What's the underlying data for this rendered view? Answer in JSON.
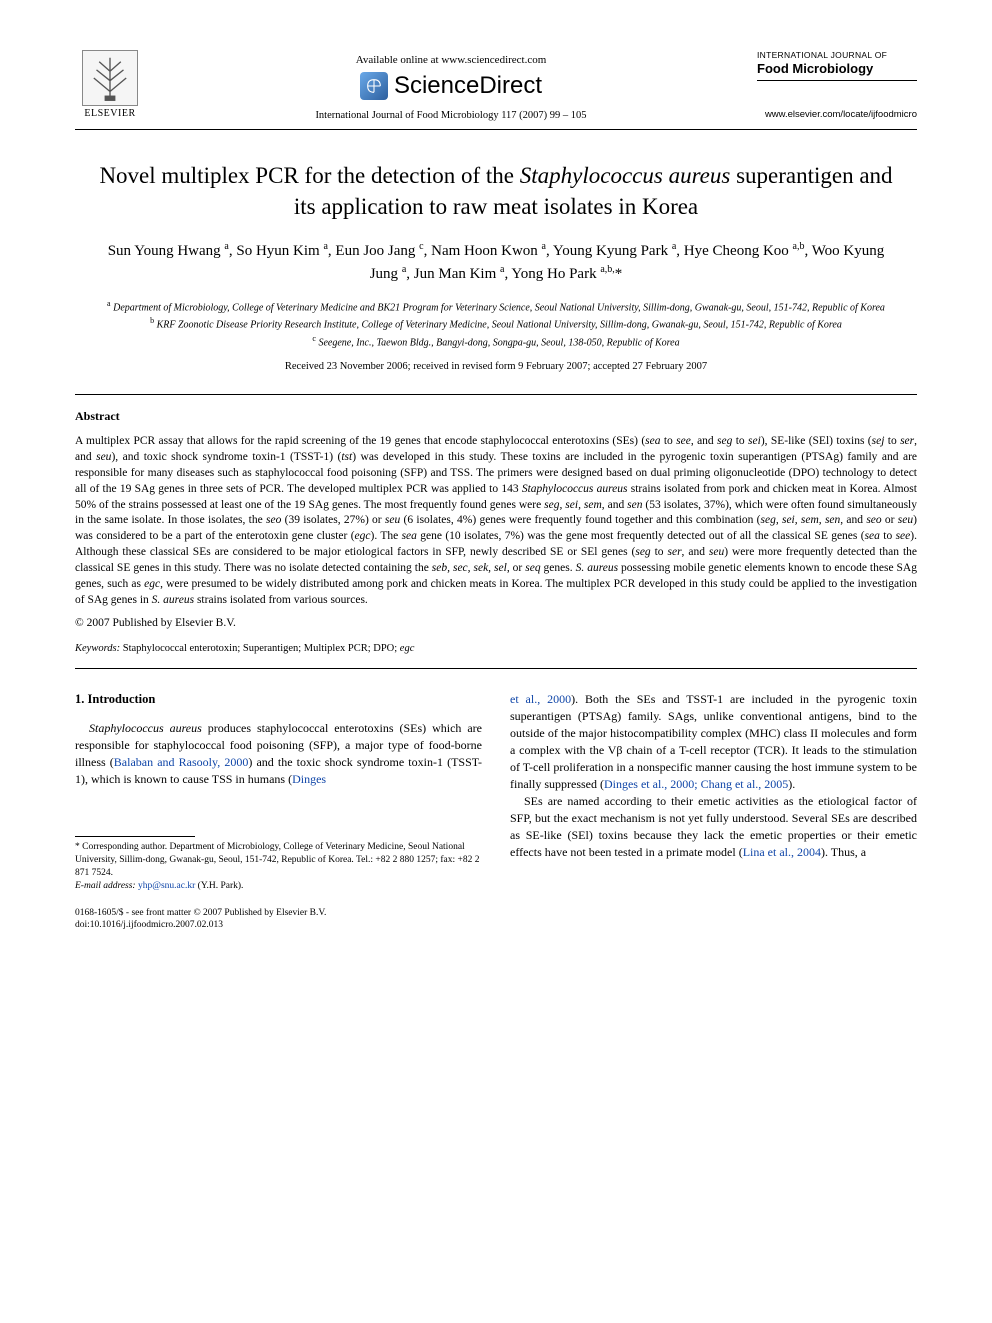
{
  "header": {
    "available_online": "Available online at www.sciencedirect.com",
    "scidirect": "ScienceDirect",
    "elsevier": "ELSEVIER",
    "citation": "International Journal of Food Microbiology 117 (2007) 99 – 105",
    "journal_over": "INTERNATIONAL JOURNAL OF",
    "journal_name": "Food Microbiology",
    "journal_url": "www.elsevier.com/locate/ijfoodmicro"
  },
  "title": {
    "pre": "Novel multiplex PCR for the detection of the ",
    "italic": "Staphylococcus aureus",
    "post": " superantigen and its application to raw meat isolates in Korea"
  },
  "authors_html": "Sun Young Hwang <sup>a</sup>, So Hyun Kim <sup>a</sup>, Eun Joo Jang <sup>c</sup>, Nam Hoon Kwon <sup>a</sup>, Young Kyung Park <sup>a</sup>, Hye Cheong Koo <sup>a,b</sup>, Woo Kyung Jung <sup>a</sup>, Jun Man Kim <sup>a</sup>, Yong Ho Park <sup>a,b,</sup>*",
  "affiliations": {
    "a": "Department of Microbiology, College of Veterinary Medicine and BK21 Program for Veterinary Science, Seoul National University, Sillim-dong, Gwanak-gu, Seoul, 151-742, Republic of Korea",
    "b": "KRF Zoonotic Disease Priority Research Institute, College of Veterinary Medicine, Seoul National University, Sillim-dong, Gwanak-gu, Seoul, 151-742, Republic of Korea",
    "c": "Seegene, Inc., Taewon Bldg., Bangyi-dong, Songpa-gu, Seoul, 138-050, Republic of Korea"
  },
  "dates": "Received 23 November 2006; received in revised form 9 February 2007; accepted 27 February 2007",
  "abstract": {
    "heading": "Abstract",
    "body_html": "A multiplex PCR assay that allows for the rapid screening of the 19 genes that encode staphylococcal enterotoxins (SEs) (<span class=\"italic\">sea</span> to <span class=\"italic\">see</span>, and <span class=\"italic\">seg</span> to <span class=\"italic\">sei</span>), SE-like (SEl) toxins (<span class=\"italic\">sej</span> to <span class=\"italic\">ser</span>, and <span class=\"italic\">seu</span>), and toxic shock syndrome toxin-1 (TSST-1) (<span class=\"italic\">tst</span>) was developed in this study. These toxins are included in the pyrogenic toxin superantigen (PTSAg) family and are responsible for many diseases such as staphylococcal food poisoning (SFP) and TSS. The primers were designed based on dual priming oligonucleotide (DPO) technology to detect all of the 19 SAg genes in three sets of PCR. The developed multiplex PCR was applied to 143 <span class=\"italic\">Staphylococcus aureus</span> strains isolated from pork and chicken meat in Korea. Almost 50% of the strains possessed at least one of the 19 SAg genes. The most frequently found genes were <span class=\"italic\">seg, sei, sem</span>, and <span class=\"italic\">sen</span> (53 isolates, 37%), which were often found simultaneously in the same isolate. In those isolates, the <span class=\"italic\">seo</span> (39 isolates, 27%) or <span class=\"italic\">seu</span> (6 isolates, 4%) genes were frequently found together and this combination (<span class=\"italic\">seg, sei, sem, sen</span>, and <span class=\"italic\">seo</span> or <span class=\"italic\">seu</span>) was considered to be a part of the enterotoxin gene cluster (<span class=\"italic\">egc</span>). The <span class=\"italic\">sea</span> gene (10 isolates, 7%) was the gene most frequently detected out of all the classical SE genes (<span class=\"italic\">sea</span> to <span class=\"italic\">see</span>). Although these classical SEs are considered to be major etiological factors in SFP, newly described SE or SEl genes (<span class=\"italic\">seg</span> to <span class=\"italic\">ser</span>, and <span class=\"italic\">seu</span>) were more frequently detected than the classical SE genes in this study. There was no isolate detected containing the <span class=\"italic\">seb, sec, sek, sel</span>, or <span class=\"italic\">seq</span> genes. <span class=\"italic\">S. aureus</span> possessing mobile genetic elements known to encode these SAg genes, such as <span class=\"italic\">egc</span>, were presumed to be widely distributed among pork and chicken meats in Korea. The multiplex PCR developed in this study could be applied to the investigation of SAg genes in <span class=\"italic\">S. aureus</span> strains isolated from various sources.",
    "copyright": "© 2007 Published by Elsevier B.V."
  },
  "keywords": {
    "label": "Keywords:",
    "text_html": " Staphylococcal enterotoxin; Superantigen; Multiplex PCR; DPO; <span class=\"italic\">egc</span>"
  },
  "intro": {
    "heading": "1. Introduction",
    "left_html": "<span class=\"italic\">Staphylococcus aureus</span> produces staphylococcal enterotoxins (SEs) which are responsible for staphylococcal food poisoning (SFP), a major type of food-borne illness (<span class=\"ref-link\">Balaban and Rasooly, 2000</span>) and the toxic shock syndrome toxin-1 (TSST-1), which is known to cause TSS in humans (<span class=\"ref-link\">Dinges</span>",
    "right1_html": "<span class=\"ref-link\">et al., 2000</span>). Both the SEs and TSST-1 are included in the pyrogenic toxin superantigen (PTSAg) family. SAgs, unlike conventional antigens, bind to the outside of the major histocompatibility complex (MHC) class II molecules and form a complex with the Vβ chain of a T-cell receptor (TCR). It leads to the stimulation of T-cell proliferation in a nonspecific manner causing the host immune system to be finally suppressed (<span class=\"ref-link\">Dinges et al., 2000; Chang et al., 2005</span>).",
    "right2_html": "SEs are named according to their emetic activities as the etiological factor of SFP, but the exact mechanism is not yet fully understood. Several SEs are described as SE-like (SEl) toxins because they lack the emetic properties or their emetic effects have not been tested in a primate model (<span class=\"ref-link\">Lina et al., 2004</span>). Thus, a"
  },
  "footnote": {
    "corr": "* Corresponding author. Department of Microbiology, College of Veterinary Medicine, Seoul National University, Sillim-dong, Gwanak-gu, Seoul, 151-742, Republic of Korea. Tel.: +82 2 880 1257; fax: +82 2 871 7524.",
    "email_label": "E-mail address:",
    "email": "yhp@snu.ac.kr",
    "email_who": "(Y.H. Park)."
  },
  "footer": {
    "line1": "0168-1605/$ - see front matter © 2007 Published by Elsevier B.V.",
    "line2": "doi:10.1016/j.ijfoodmicro.2007.02.013"
  },
  "colors": {
    "link": "#1046a8",
    "text": "#000000",
    "bg": "#ffffff"
  }
}
